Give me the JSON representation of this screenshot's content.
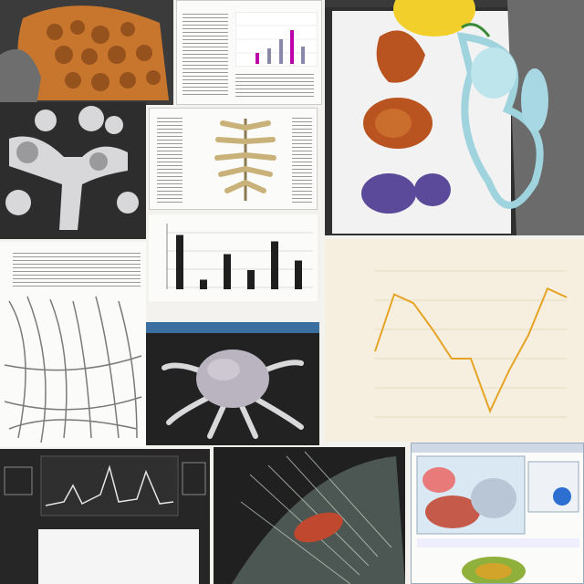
{
  "collage": {
    "panel_captions": {
      "orange_chart_title": "",
      "bottom_left_caption": ""
    }
  },
  "colors": {
    "orange_line": "#e6a426",
    "cream_bg": "#f6efe0",
    "dark_bg": "#2a2a2a",
    "teal_structure": "#9fd3dd",
    "brown_organ": "#b9531f",
    "purple_organ": "#5b4a9a"
  },
  "icons": [
    "reptile-skin-texture",
    "bone-joint-render",
    "spine-illustration",
    "organ-diagram",
    "root-network-illustration",
    "sphere-with-tendrils",
    "waveform-monitor",
    "anatomy-xray",
    "medical-software-window"
  ],
  "chart_data": [
    {
      "type": "line",
      "title": "",
      "series": [
        {
          "values": [
            0.45,
            0.84,
            0.78,
            0.6,
            0.4,
            0.4,
            0.04,
            0.32,
            0.56,
            0.88,
            0.82
          ]
        }
      ],
      "x": [
        0,
        1,
        2,
        3,
        4,
        5,
        6,
        7,
        8,
        9,
        10
      ],
      "ylim": [
        0,
        1
      ],
      "grid": true,
      "legend": "none"
    },
    {
      "type": "bar",
      "title": "",
      "values": [
        0.85,
        0.15,
        0.55,
        0.3,
        0.75,
        0.45
      ],
      "ylim": [
        0,
        1
      ],
      "grid": true
    }
  ]
}
